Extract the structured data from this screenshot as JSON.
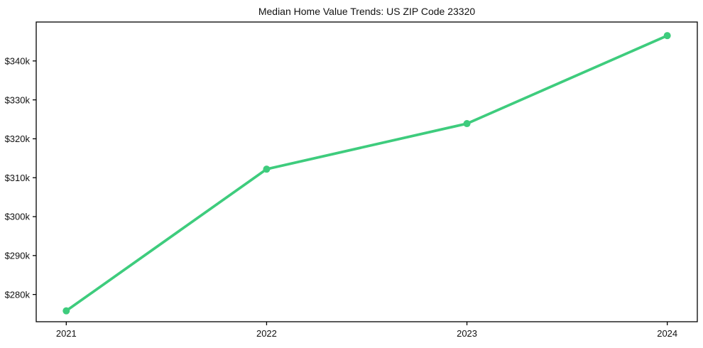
{
  "page": {
    "background_color": "#ffffff",
    "text_color": "#111111"
  },
  "chart_data": {
    "type": "line",
    "title": "Median Home Value Trends: US ZIP Code 23320",
    "xlabel": "",
    "ylabel": "",
    "x_categories": [
      "2021",
      "2022",
      "2023",
      "2024"
    ],
    "series": [
      {
        "name": "Median Home Value",
        "values": [
          275800,
          312200,
          323900,
          346500
        ],
        "color": "#3ecc7d",
        "line_width": 3.7,
        "marker": "circle",
        "marker_radius": 5
      }
    ],
    "ylim": [
      273000,
      350000
    ],
    "yticks": [
      {
        "value": 280000,
        "label": "$280k"
      },
      {
        "value": 290000,
        "label": "$290k"
      },
      {
        "value": 300000,
        "label": "$300k"
      },
      {
        "value": 310000,
        "label": "$310k"
      },
      {
        "value": 320000,
        "label": "$320k"
      },
      {
        "value": 330000,
        "label": "$330k"
      },
      {
        "value": 340000,
        "label": "$340k"
      }
    ],
    "grid": false,
    "legend": "none",
    "frame": "full-box",
    "axis_color": "#000000"
  }
}
